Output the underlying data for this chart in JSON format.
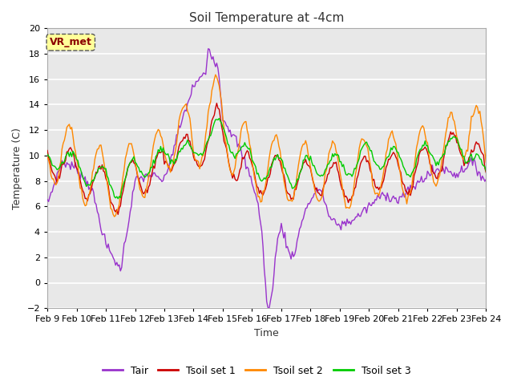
{
  "title": "Soil Temperature at -4cm",
  "xlabel": "Time",
  "ylabel": "Temperature (C)",
  "ylim": [
    -2,
    20
  ],
  "xlim": [
    0,
    360
  ],
  "fig_bg_color": "#ffffff",
  "plot_bg_color": "#e8e8e8",
  "grid_color": "#ffffff",
  "annotation_text": "VR_met",
  "annotation_bg": "#ffff99",
  "annotation_border": "#8B0000",
  "series": {
    "Tair": {
      "color": "#9933cc",
      "lw": 1.0
    },
    "Tsoil set 1": {
      "color": "#cc0000",
      "lw": 1.0
    },
    "Tsoil set 2": {
      "color": "#ff8800",
      "lw": 1.0
    },
    "Tsoil set 3": {
      "color": "#00cc00",
      "lw": 1.0
    }
  },
  "xtick_labels": [
    "Feb 9",
    "Feb 10",
    "Feb 11",
    "Feb 12",
    "Feb 13",
    "Feb 14",
    "Feb 15",
    "Feb 16",
    "Feb 17",
    "Feb 18",
    "Feb 19",
    "Feb 20",
    "Feb 21",
    "Feb 22",
    "Feb 23",
    "Feb 24"
  ],
  "xtick_positions": [
    0,
    24,
    48,
    72,
    96,
    120,
    144,
    168,
    192,
    216,
    240,
    264,
    288,
    312,
    336,
    360
  ],
  "ytick_positions": [
    -2,
    0,
    2,
    4,
    6,
    8,
    10,
    12,
    14,
    16,
    18,
    20
  ]
}
